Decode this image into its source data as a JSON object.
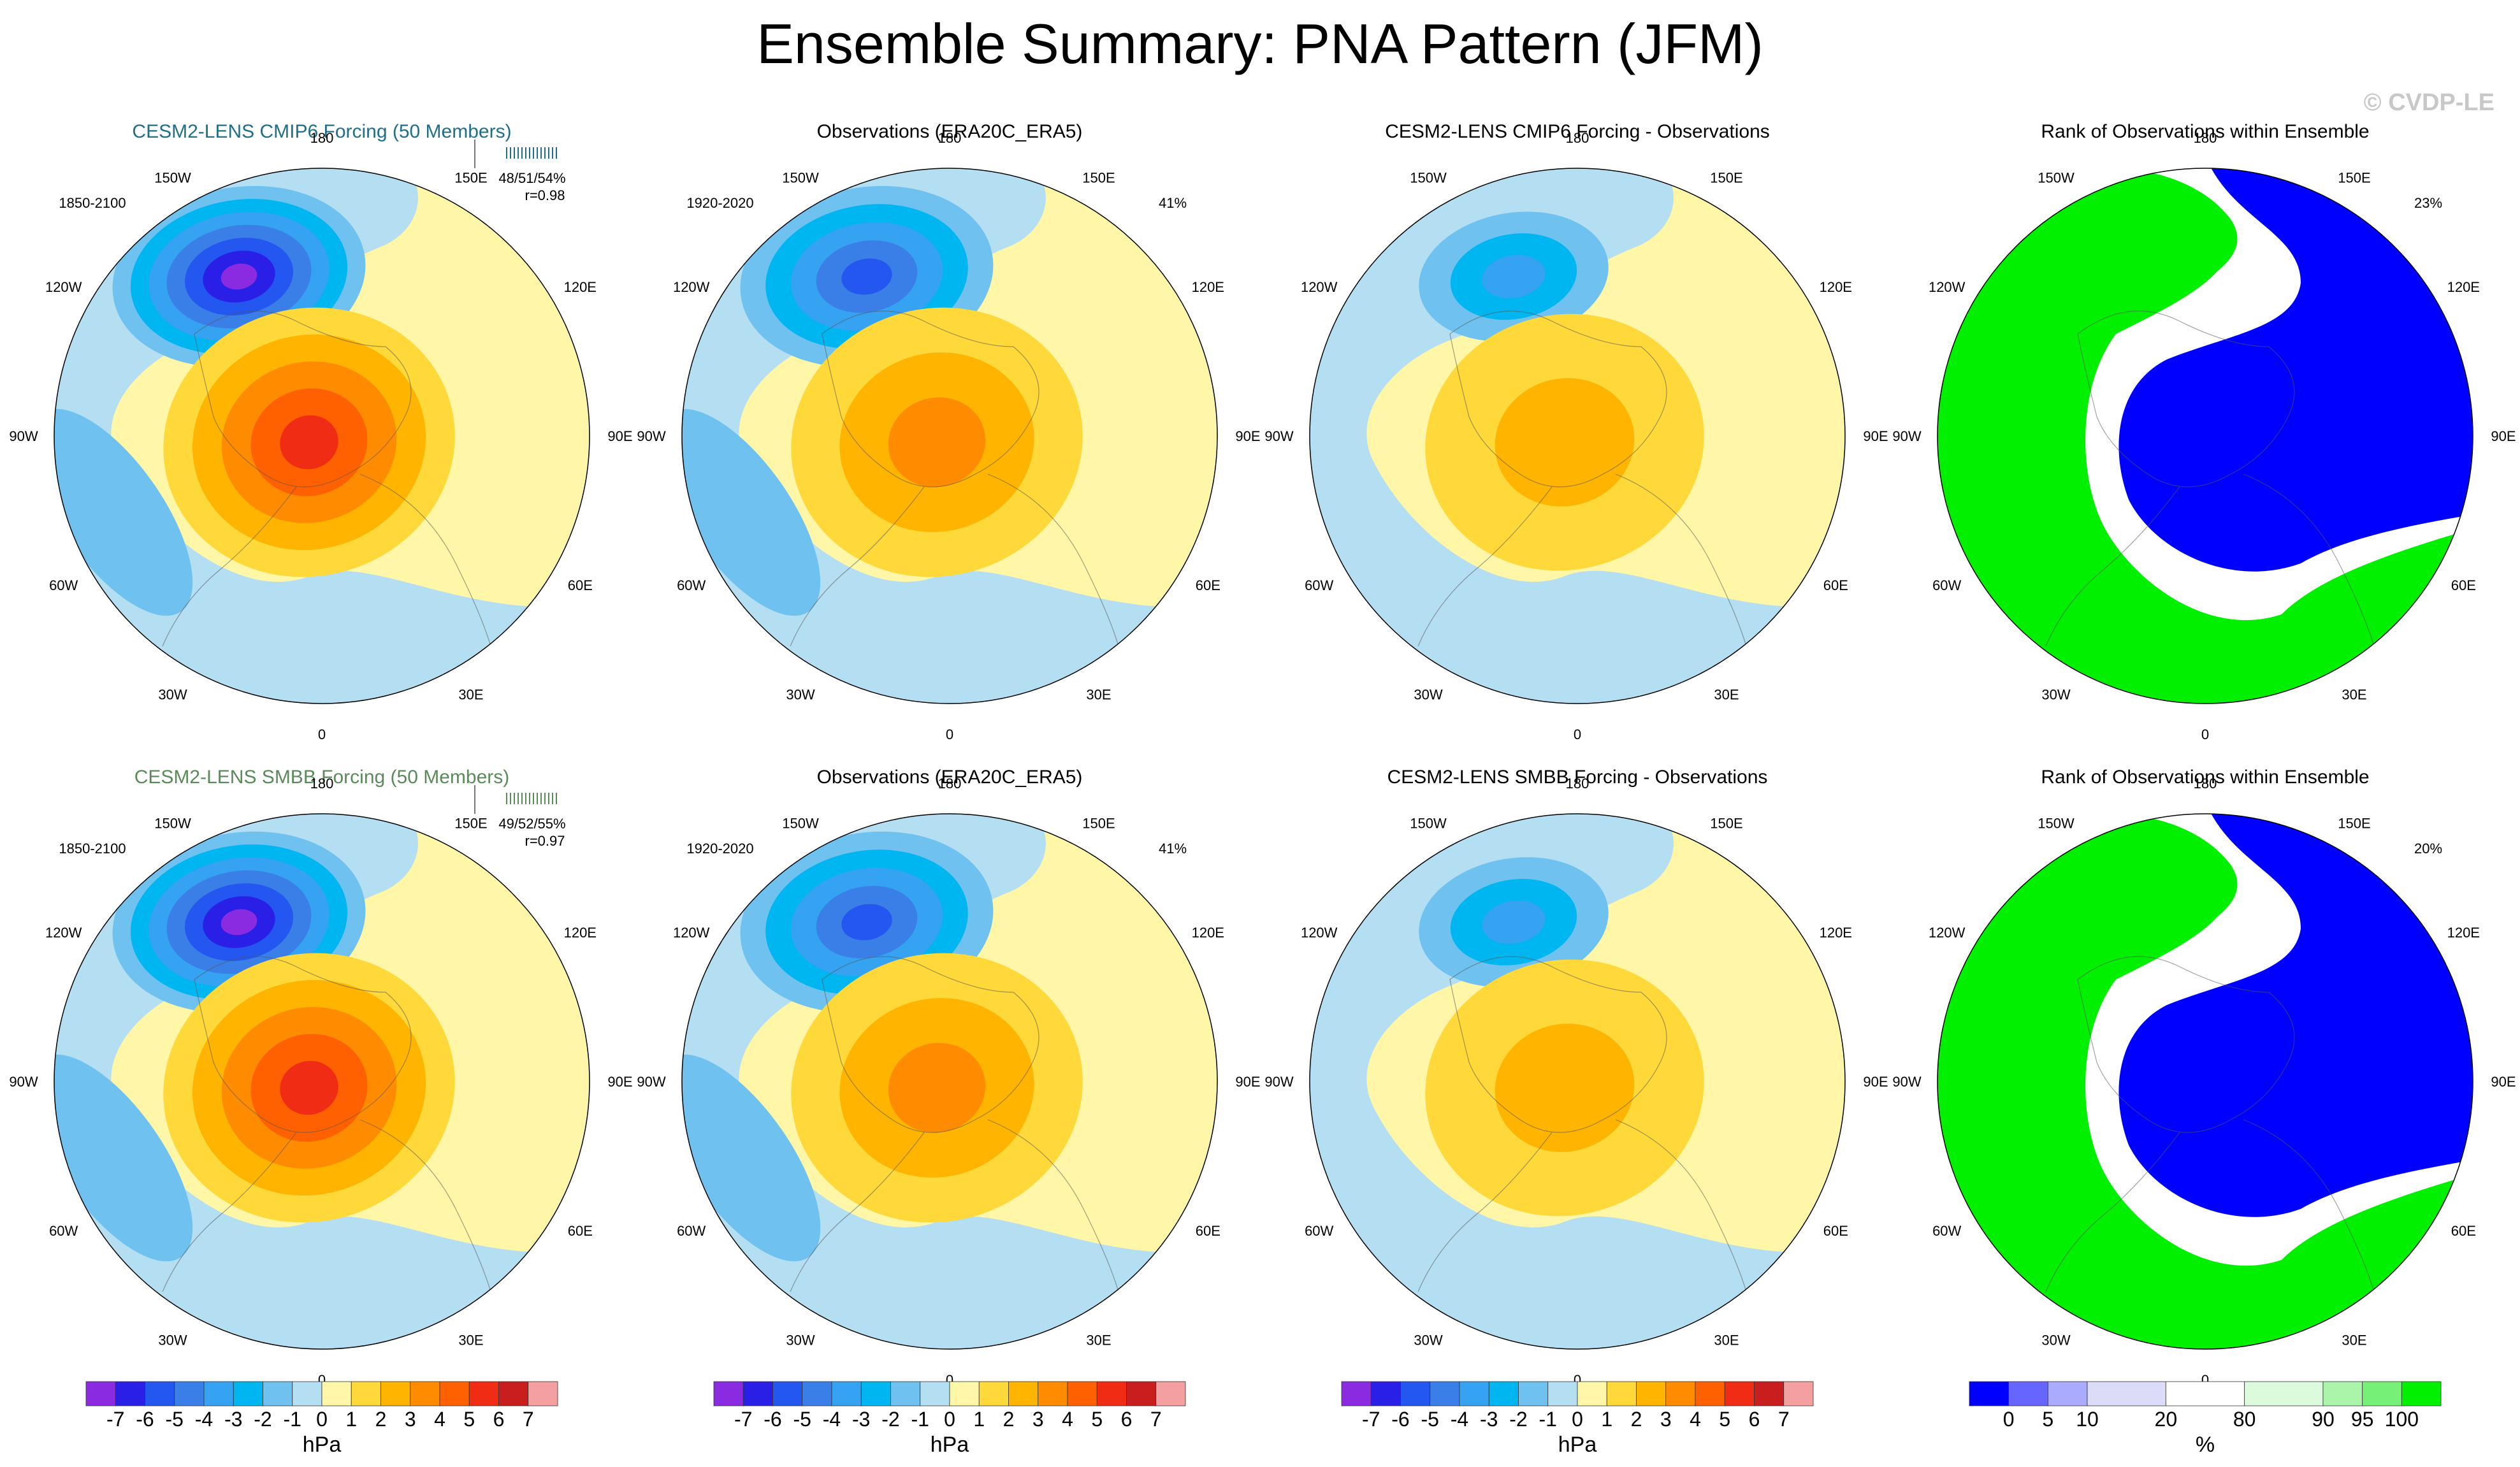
{
  "title": "Ensemble Summary: PNA Pattern (JFM)",
  "watermark": "© CVDP-LE",
  "colors": {
    "anomaly_scale": [
      "#8a2be2",
      "#2a1fe6",
      "#2456f0",
      "#3a7fe8",
      "#35a2f2",
      "#00b6f0",
      "#6fc2ef",
      "#b4def2",
      "#fff6a8",
      "#ffd83a",
      "#ffb400",
      "#ff8c00",
      "#ff6000",
      "#f02c14",
      "#c81e1e",
      "#f5a0a0"
    ],
    "rank_scale": [
      "#0000ff",
      "#6666ff",
      "#aaaaff",
      "#dcdcf8",
      "#ffffff",
      "#dcfadc",
      "#aaf5aa",
      "#77f077",
      "#00f000"
    ]
  },
  "chart_data": [
    {
      "type": "heatmap",
      "panel": "cmip6-ensemble",
      "title": "CESM2-LENS CMIP6 Forcing (50 Members)",
      "title_color": "#1f6f8b",
      "period": "1850-2100",
      "stats": "48/51/54%",
      "corr": "r=0.98",
      "lon_labels": [
        "180",
        "150E",
        "120E",
        "90E",
        "60E",
        "30E",
        "0",
        "30W",
        "60W",
        "90W",
        "120W",
        "150W"
      ],
      "features": [
        {
          "name": "North Pacific low (center)",
          "value": -7,
          "unit": "hPa"
        },
        {
          "name": "North American high (center)",
          "value": 5,
          "unit": "hPa"
        }
      ]
    },
    {
      "type": "heatmap",
      "panel": "observations-1",
      "title": "Observations (ERA20C_ERA5)",
      "period": "1920-2020",
      "pct": "41%",
      "lon_labels": [
        "180",
        "150E",
        "120E",
        "90E",
        "60E",
        "30E",
        "0",
        "30W",
        "60W",
        "90W",
        "120W",
        "150W"
      ],
      "features": [
        {
          "name": "North Pacific low (center)",
          "value": -5,
          "unit": "hPa"
        },
        {
          "name": "North American high (center)",
          "value": 3,
          "unit": "hPa"
        }
      ]
    },
    {
      "type": "heatmap",
      "panel": "cmip6-minus-obs",
      "title": "CESM2-LENS CMIP6 Forcing - Observations",
      "lon_labels": [
        "180",
        "150E",
        "120E",
        "90E",
        "60E",
        "30E",
        "0",
        "30W",
        "60W",
        "90W",
        "120W",
        "150W"
      ],
      "features": [
        {
          "name": "North Pacific difference (center)",
          "value": -3,
          "unit": "hPa"
        },
        {
          "name": "North American difference (center)",
          "value": 2,
          "unit": "hPa"
        }
      ]
    },
    {
      "type": "heatmap",
      "panel": "rank-1",
      "title": "Rank of Observations within Ensemble",
      "pct": "23%",
      "lon_labels": [
        "180",
        "150E",
        "120E",
        "90E",
        "60E",
        "30E",
        "0",
        "30W",
        "60W",
        "90W",
        "120W",
        "150W"
      ]
    },
    {
      "type": "heatmap",
      "panel": "smbb-ensemble",
      "title": "CESM2-LENS SMBB Forcing (50 Members)",
      "title_color": "#5a8a5a",
      "period": "1850-2100",
      "stats": "49/52/55%",
      "corr": "r=0.97",
      "lon_labels": [
        "180",
        "150E",
        "120E",
        "90E",
        "60E",
        "30E",
        "0",
        "30W",
        "60W",
        "90W",
        "120W",
        "150W"
      ],
      "features": [
        {
          "name": "North Pacific low (center)",
          "value": -7,
          "unit": "hPa"
        },
        {
          "name": "North American high (center)",
          "value": 5,
          "unit": "hPa"
        }
      ]
    },
    {
      "type": "heatmap",
      "panel": "observations-2",
      "title": "Observations (ERA20C_ERA5)",
      "period": "1920-2020",
      "pct": "41%",
      "lon_labels": [
        "180",
        "150E",
        "120E",
        "90E",
        "60E",
        "30E",
        "0",
        "30W",
        "60W",
        "90W",
        "120W",
        "150W"
      ],
      "features": [
        {
          "name": "North Pacific low (center)",
          "value": -5,
          "unit": "hPa"
        },
        {
          "name": "North American high (center)",
          "value": 3,
          "unit": "hPa"
        }
      ]
    },
    {
      "type": "heatmap",
      "panel": "smbb-minus-obs",
      "title": "CESM2-LENS SMBB Forcing - Observations",
      "lon_labels": [
        "180",
        "150E",
        "120E",
        "90E",
        "60E",
        "30E",
        "0",
        "30W",
        "60W",
        "90W",
        "120W",
        "150W"
      ],
      "features": [
        {
          "name": "North Pacific difference (center)",
          "value": -3,
          "unit": "hPa"
        },
        {
          "name": "North American difference (center)",
          "value": 2,
          "unit": "hPa"
        }
      ]
    },
    {
      "type": "heatmap",
      "panel": "rank-2",
      "title": "Rank of Observations within Ensemble",
      "pct": "20%",
      "lon_labels": [
        "180",
        "150E",
        "120E",
        "90E",
        "60E",
        "30E",
        "0",
        "30W",
        "60W",
        "90W",
        "120W",
        "150W"
      ]
    }
  ],
  "colorbars": [
    {
      "kind": "anomaly",
      "labels": [
        "-7",
        "-6",
        "-5",
        "-4",
        "-3",
        "-2",
        "-1",
        "0",
        "1",
        "2",
        "3",
        "4",
        "5",
        "6",
        "7"
      ],
      "unit": "hPa"
    },
    {
      "kind": "anomaly",
      "labels": [
        "-7",
        "-6",
        "-5",
        "-4",
        "-3",
        "-2",
        "-1",
        "0",
        "1",
        "2",
        "3",
        "4",
        "5",
        "6",
        "7"
      ],
      "unit": "hPa"
    },
    {
      "kind": "anomaly",
      "labels": [
        "-7",
        "-6",
        "-5",
        "-4",
        "-3",
        "-2",
        "-1",
        "0",
        "1",
        "2",
        "3",
        "4",
        "5",
        "6",
        "7"
      ],
      "unit": "hPa"
    },
    {
      "kind": "rank",
      "labels": [
        "0",
        "5",
        "10",
        "20",
        "80",
        "90",
        "95",
        "100"
      ],
      "unit": "%"
    }
  ]
}
